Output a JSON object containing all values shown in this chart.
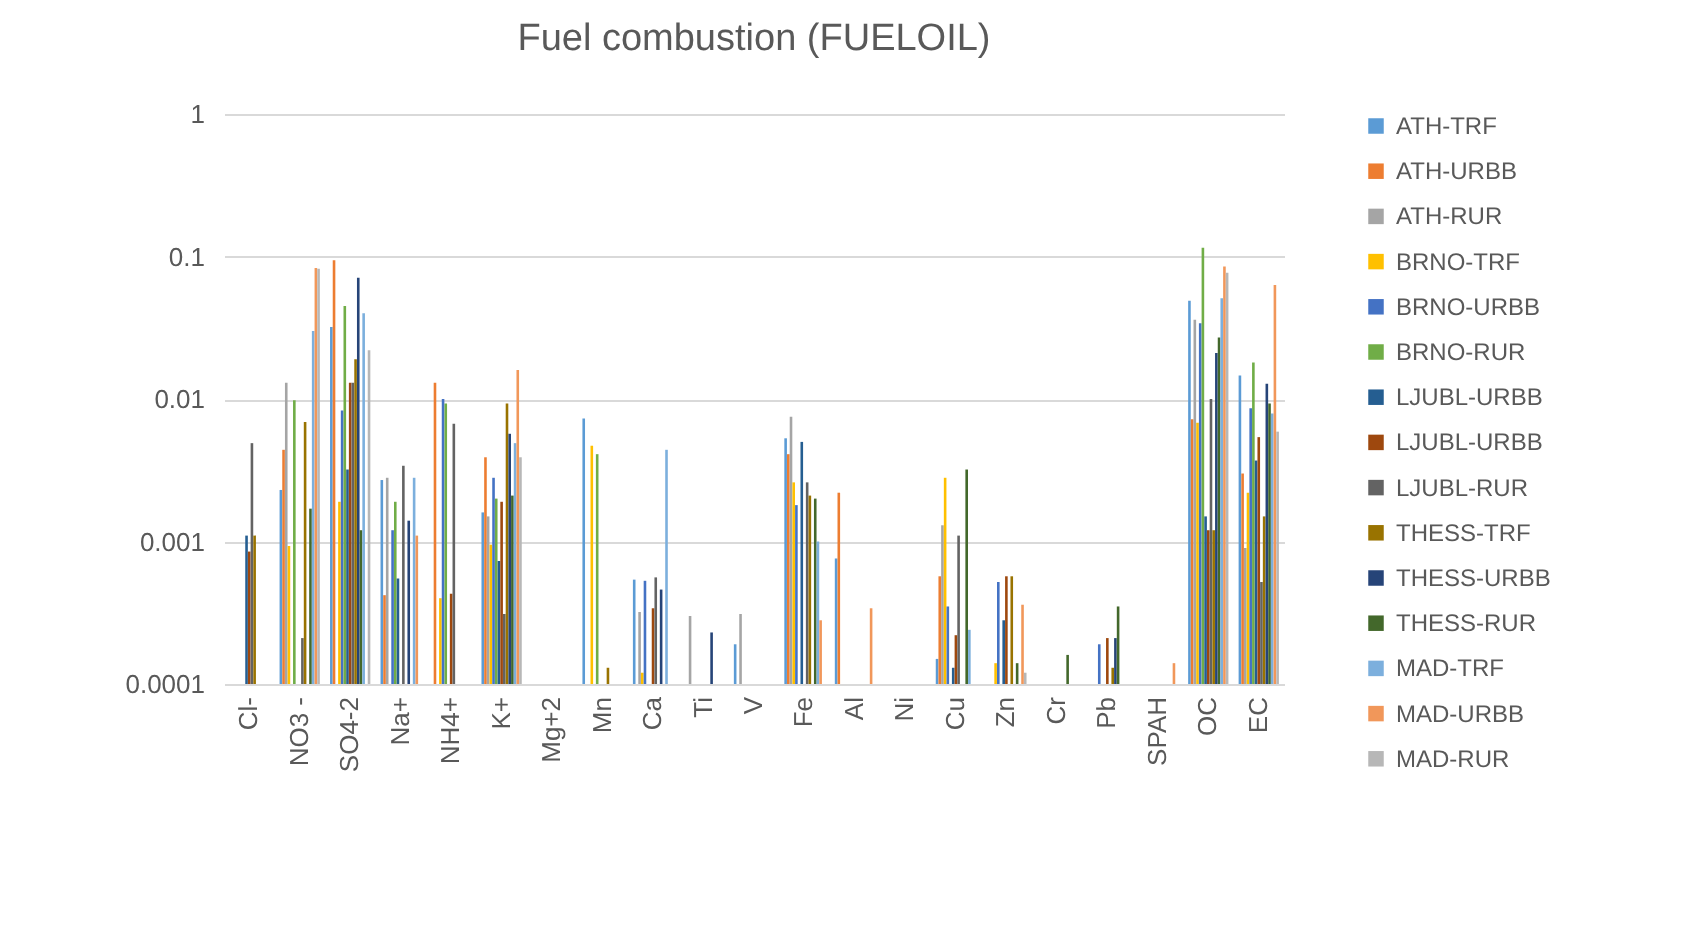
{
  "chart_data": {
    "type": "bar",
    "title": "Fuel combustion (FUELOIL)",
    "categories": [
      "Cl-",
      "NO3 -",
      "SO4-2",
      "Na+",
      "NH4+",
      "K+",
      "Mg+2",
      "Mn",
      "Ca",
      "Ti",
      "V",
      "Fe",
      "Al",
      "Ni",
      "Cu",
      "Zn",
      "Cr",
      "Pb",
      "SPAH",
      "OC",
      "EC"
    ],
    "series": [
      {
        "name": "ATH-TRF",
        "color": "#5b9bd5",
        "values": [
          null,
          0.0023,
          0.032,
          0.0027,
          null,
          0.0016,
          null,
          0.0073,
          0.00054,
          null,
          0.00019,
          0.0053,
          0.00076,
          null,
          0.00015,
          null,
          null,
          null,
          null,
          0.049,
          0.0146
        ]
      },
      {
        "name": "ATH-URBB",
        "color": "#ed7d31",
        "values": [
          null,
          0.0044,
          0.094,
          0.00042,
          0.013,
          0.0039,
          null,
          null,
          null,
          null,
          null,
          0.0041,
          0.0022,
          null,
          0.00057,
          null,
          null,
          null,
          null,
          0.0072,
          0.003
        ]
      },
      {
        "name": "ATH-RUR",
        "color": "#a5a5a5",
        "values": [
          null,
          0.013,
          null,
          0.0028,
          null,
          0.0015,
          null,
          null,
          0.00032,
          0.0003,
          0.00031,
          0.0075,
          null,
          null,
          0.0013,
          null,
          null,
          null,
          null,
          0.036,
          0.0009
        ]
      },
      {
        "name": "BRNO-TRF",
        "color": "#ffc000",
        "values": [
          null,
          0.00093,
          0.0019,
          null,
          0.0004,
          0.00095,
          null,
          0.0047,
          0.00012,
          null,
          null,
          0.0026,
          null,
          null,
          0.0028,
          0.00014,
          null,
          null,
          null,
          0.0068,
          0.0022
        ]
      },
      {
        "name": "BRNO-URBB",
        "color": "#4472c4",
        "values": [
          null,
          null,
          0.0083,
          0.0012,
          0.01,
          0.0028,
          null,
          null,
          0.00053,
          null,
          null,
          0.0018,
          null,
          null,
          0.00035,
          0.00052,
          null,
          0.00019,
          null,
          0.034,
          0.0086
        ]
      },
      {
        "name": "BRNO-RUR",
        "color": "#70ad47",
        "values": [
          null,
          0.0098,
          0.045,
          0.0019,
          0.0093,
          0.002,
          null,
          0.0041,
          null,
          null,
          null,
          null,
          null,
          null,
          null,
          null,
          null,
          null,
          null,
          0.115,
          0.018
        ]
      },
      {
        "name": "LJUBL-URBB",
        "color": "#255e91",
        "values": [
          0.0011,
          null,
          0.0032,
          0.00055,
          null,
          0.00073,
          null,
          null,
          null,
          null,
          null,
          0.005,
          null,
          null,
          0.00013,
          0.00028,
          null,
          null,
          null,
          0.0015,
          0.0037
        ]
      },
      {
        "name": "LJUBL-URBB",
        "color": "#9e480e",
        "values": [
          0.00085,
          null,
          0.013,
          null,
          0.00043,
          0.0019,
          null,
          null,
          0.00034,
          null,
          null,
          null,
          null,
          null,
          0.00022,
          0.00057,
          null,
          0.00021,
          null,
          0.0012,
          0.0054
        ]
      },
      {
        "name": "LJUBL-RUR",
        "color": "#636363",
        "values": [
          0.0049,
          0.00021,
          0.013,
          0.0034,
          0.0067,
          0.00031,
          null,
          null,
          0.00056,
          null,
          null,
          0.0026,
          null,
          null,
          0.0011,
          null,
          null,
          null,
          null,
          0.01,
          0.00052
        ]
      },
      {
        "name": "THESS-TRF",
        "color": "#997300",
        "values": [
          0.0011,
          0.0069,
          0.019,
          null,
          null,
          0.0093,
          null,
          0.00013,
          null,
          null,
          null,
          0.0021,
          null,
          null,
          null,
          0.00057,
          null,
          0.00013,
          null,
          0.0012,
          0.0015
        ]
      },
      {
        "name": "THESS-URBB",
        "color": "#264478",
        "values": [
          null,
          null,
          0.071,
          0.0014,
          null,
          0.0057,
          null,
          null,
          0.00046,
          0.00023,
          null,
          null,
          null,
          null,
          null,
          null,
          null,
          0.00021,
          null,
          0.021,
          0.0128
        ]
      },
      {
        "name": "THESS-RUR",
        "color": "#43682b",
        "values": [
          null,
          0.0017,
          0.0012,
          null,
          null,
          0.0021,
          null,
          null,
          null,
          null,
          null,
          0.002,
          null,
          null,
          0.0032,
          0.00014,
          0.00016,
          0.00035,
          null,
          0.027,
          0.0093
        ]
      },
      {
        "name": "MAD-TRF",
        "color": "#7cafdd",
        "values": [
          null,
          0.03,
          0.04,
          0.0028,
          null,
          0.0049,
          null,
          null,
          0.0044,
          null,
          null,
          0.001,
          null,
          null,
          0.00024,
          null,
          null,
          null,
          null,
          0.051,
          0.0079
        ]
      },
      {
        "name": "MAD-URBB",
        "color": "#f1975a",
        "values": [
          null,
          0.083,
          null,
          0.0011,
          null,
          0.016,
          null,
          null,
          null,
          null,
          null,
          0.00028,
          0.00034,
          null,
          null,
          0.00036,
          null,
          null,
          0.00014,
          0.085,
          0.063
        ]
      },
      {
        "name": "MAD-RUR",
        "color": "#b7b7b7",
        "values": [
          null,
          0.082,
          0.022,
          null,
          null,
          0.0039,
          null,
          null,
          null,
          null,
          null,
          null,
          null,
          null,
          null,
          0.00012,
          null,
          null,
          null,
          0.077,
          0.0059
        ]
      }
    ],
    "log": "y",
    "ylim": [
      0.0001,
      1
    ],
    "yticks": [
      0.0001,
      0.001,
      0.01,
      0.1,
      1
    ],
    "grid": "y",
    "legend": "right"
  }
}
